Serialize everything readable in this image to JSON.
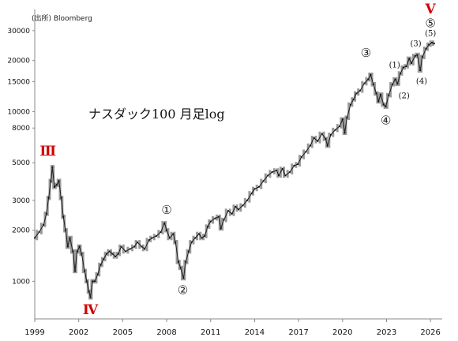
{
  "source_label": "(出所)  Bloomberg",
  "chart_data": {
    "type": "line",
    "title": "ナスダック100   月足log",
    "scale": "log",
    "ylim": [
      600,
      40000
    ],
    "xlim": [
      1999.0,
      2026.8
    ],
    "y_ticks": [
      1000,
      2000,
      3000,
      5000,
      8000,
      10000,
      15000,
      20000,
      30000
    ],
    "y_tick_labels": [
      "1000",
      "2000",
      "3000",
      "5000",
      "8000",
      "10000",
      "15000",
      "20000",
      "30000"
    ],
    "x_ticks": [
      1999,
      2002,
      2005,
      2008,
      2011,
      2014,
      2017,
      2020,
      2023,
      2026
    ],
    "x_tick_labels": [
      "1999",
      "2002",
      "2005",
      "2008",
      "2011",
      "2014",
      "2017",
      "2020",
      "2023",
      "2026"
    ],
    "grid": false,
    "series": [
      {
        "points": [
          [
            1999.0,
            1800
          ],
          [
            1999.3,
            1950
          ],
          [
            1999.6,
            2150
          ],
          [
            1999.8,
            2500
          ],
          [
            1999.95,
            3100
          ],
          [
            2000.1,
            3900
          ],
          [
            2000.2,
            4704
          ],
          [
            2000.35,
            3600
          ],
          [
            2000.5,
            3700
          ],
          [
            2000.65,
            3900
          ],
          [
            2000.8,
            3100
          ],
          [
            2000.95,
            2400
          ],
          [
            2001.1,
            2000
          ],
          [
            2001.25,
            1600
          ],
          [
            2001.4,
            1800
          ],
          [
            2001.6,
            1500
          ],
          [
            2001.75,
            1150
          ],
          [
            2001.9,
            1500
          ],
          [
            2002.05,
            1600
          ],
          [
            2002.2,
            1450
          ],
          [
            2002.4,
            1150
          ],
          [
            2002.55,
            1000
          ],
          [
            2002.7,
            870
          ],
          [
            2002.8,
            804
          ],
          [
            2002.95,
            1000
          ],
          [
            2003.1,
            1000
          ],
          [
            2003.3,
            1100
          ],
          [
            2003.5,
            1250
          ],
          [
            2003.7,
            1350
          ],
          [
            2003.9,
            1450
          ],
          [
            2004.1,
            1500
          ],
          [
            2004.3,
            1450
          ],
          [
            2004.5,
            1400
          ],
          [
            2004.7,
            1450
          ],
          [
            2004.9,
            1600
          ],
          [
            2005.2,
            1500
          ],
          [
            2005.5,
            1550
          ],
          [
            2005.8,
            1600
          ],
          [
            2006.0,
            1700
          ],
          [
            2006.3,
            1600
          ],
          [
            2006.5,
            1550
          ],
          [
            2006.8,
            1750
          ],
          [
            2007.0,
            1800
          ],
          [
            2007.3,
            1850
          ],
          [
            2007.6,
            1950
          ],
          [
            2007.85,
            2200
          ],
          [
            2008.0,
            2000
          ],
          [
            2008.2,
            1800
          ],
          [
            2008.45,
            1900
          ],
          [
            2008.6,
            1700
          ],
          [
            2008.8,
            1300
          ],
          [
            2008.95,
            1200
          ],
          [
            2009.15,
            1043
          ],
          [
            2009.3,
            1300
          ],
          [
            2009.5,
            1500
          ],
          [
            2009.7,
            1700
          ],
          [
            2009.95,
            1800
          ],
          [
            2010.2,
            1900
          ],
          [
            2010.4,
            1800
          ],
          [
            2010.6,
            1850
          ],
          [
            2010.8,
            2100
          ],
          [
            2011.0,
            2250
          ],
          [
            2011.3,
            2350
          ],
          [
            2011.55,
            2400
          ],
          [
            2011.7,
            2050
          ],
          [
            2011.9,
            2300
          ],
          [
            2012.2,
            2600
          ],
          [
            2012.45,
            2500
          ],
          [
            2012.7,
            2750
          ],
          [
            2012.9,
            2650
          ],
          [
            2013.2,
            2800
          ],
          [
            2013.5,
            3000
          ],
          [
            2013.8,
            3300
          ],
          [
            2014.0,
            3500
          ],
          [
            2014.3,
            3600
          ],
          [
            2014.6,
            3900
          ],
          [
            2014.9,
            4200
          ],
          [
            2015.2,
            4400
          ],
          [
            2015.5,
            4500
          ],
          [
            2015.65,
            4200
          ],
          [
            2015.9,
            4600
          ],
          [
            2016.1,
            4200
          ],
          [
            2016.4,
            4400
          ],
          [
            2016.7,
            4800
          ],
          [
            2016.95,
            4900
          ],
          [
            2017.2,
            5400
          ],
          [
            2017.5,
            5800
          ],
          [
            2017.8,
            6300
          ],
          [
            2018.05,
            7000
          ],
          [
            2018.3,
            6700
          ],
          [
            2018.6,
            7400
          ],
          [
            2018.85,
            6900
          ],
          [
            2018.97,
            6300
          ],
          [
            2019.2,
            7300
          ],
          [
            2019.5,
            7800
          ],
          [
            2019.8,
            8200
          ],
          [
            2020.0,
            9000
          ],
          [
            2020.15,
            7500
          ],
          [
            2020.3,
            9200
          ],
          [
            2020.55,
            11000
          ],
          [
            2020.75,
            11800
          ],
          [
            2020.95,
            12800
          ],
          [
            2021.2,
            13300
          ],
          [
            2021.5,
            14700
          ],
          [
            2021.75,
            15500
          ],
          [
            2021.92,
            16500
          ],
          [
            2022.1,
            14500
          ],
          [
            2022.3,
            12800
          ],
          [
            2022.45,
            11500
          ],
          [
            2022.6,
            12600
          ],
          [
            2022.8,
            11000
          ],
          [
            2022.95,
            10700
          ],
          [
            2023.15,
            12500
          ],
          [
            2023.4,
            14500
          ],
          [
            2023.6,
            15500
          ],
          [
            2023.75,
            14600
          ],
          [
            2023.95,
            16800
          ],
          [
            2024.15,
            18200
          ],
          [
            2024.35,
            18500
          ],
          [
            2024.55,
            20500
          ],
          [
            2024.7,
            19300
          ],
          [
            2024.95,
            21300
          ],
          [
            2025.1,
            21600
          ],
          [
            2025.3,
            17500
          ],
          [
            2025.45,
            21000
          ],
          [
            2025.7,
            23500
          ],
          [
            2025.9,
            24800
          ],
          [
            2026.1,
            25500
          ],
          [
            2026.25,
            25200
          ]
        ]
      }
    ],
    "annotations": [
      {
        "text": "Ⅲ",
        "style": "roman",
        "x": 1999.9,
        "y": 5500
      },
      {
        "text": "Ⅳ",
        "style": "roman",
        "x": 2002.8,
        "y": 640
      },
      {
        "text": "Ⅴ",
        "style": "roman",
        "x": 2026.0,
        "y": 38000
      },
      {
        "text": "①",
        "style": "circle",
        "x": 2008.0,
        "y": 2500
      },
      {
        "text": "②",
        "style": "circle",
        "x": 2009.1,
        "y": 840
      },
      {
        "text": "③",
        "style": "circle",
        "x": 2021.6,
        "y": 21000
      },
      {
        "text": "④",
        "style": "circle",
        "x": 2022.95,
        "y": 8400
      },
      {
        "text": "⑤",
        "style": "circle",
        "x": 2026.0,
        "y": 31500
      },
      {
        "text": "(1)",
        "style": "sub",
        "x": 2023.55,
        "y": 18200
      },
      {
        "text": "(2)",
        "style": "sub",
        "x": 2024.2,
        "y": 12000
      },
      {
        "text": "(3)",
        "style": "sub",
        "x": 2025.0,
        "y": 24300
      },
      {
        "text": "(4)",
        "style": "sub",
        "x": 2025.4,
        "y": 14600
      },
      {
        "text": "(5)",
        "style": "sub",
        "x": 2026.0,
        "y": 28000
      }
    ]
  }
}
